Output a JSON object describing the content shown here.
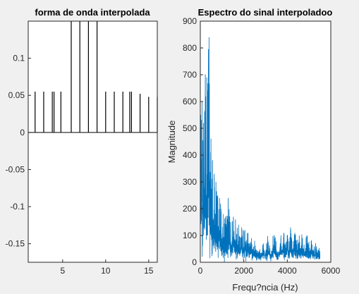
{
  "figure_background": "#f0f0f0",
  "chart_data": [
    {
      "type": "stem",
      "title": "forma de onda interpolada",
      "xlabel": "",
      "ylabel": "",
      "xlim": [
        1,
        16
      ],
      "ylim": [
        -0.175,
        0.15
      ],
      "xticks": [
        5,
        10,
        15
      ],
      "xtick_labels": [
        "5",
        "10",
        "15"
      ],
      "yticks": [
        0.1,
        0.05,
        0,
        -0.05,
        -0.1,
        -0.15
      ],
      "ytick_labels": [
        "0.1",
        "0.05",
        "0",
        "-0.05",
        "-0.1",
        "-0.15"
      ],
      "grid": false,
      "line_color": "#000000",
      "x": [
        1.8,
        2.8,
        3.8,
        4.0,
        4.8,
        6.0,
        7.0,
        8.0,
        9.0,
        10.0,
        11.0,
        12.0,
        12.8,
        13.0,
        14.0,
        15.0,
        16.0
      ],
      "values": [
        0.055,
        0.055,
        0.055,
        0.055,
        0.055,
        0.15,
        0.15,
        0.15,
        0.15,
        0.055,
        0.055,
        0.055,
        0.055,
        0.055,
        0.052,
        0.048,
        0.048
      ]
    },
    {
      "type": "line",
      "title": "Espectro do sinal interpoladoo",
      "xlabel": "Frequ?ncia (Hz)",
      "ylabel": "Magnitude",
      "xlim": [
        0,
        6000
      ],
      "ylim": [
        0,
        900
      ],
      "xticks": [
        0,
        2000,
        4000,
        6000
      ],
      "xtick_labels": [
        "0",
        "2000",
        "4000",
        "6000"
      ],
      "yticks": [
        0,
        100,
        200,
        300,
        400,
        500,
        600,
        700,
        800,
        900
      ],
      "ytick_labels": [
        "0",
        "100",
        "200",
        "300",
        "400",
        "500",
        "600",
        "700",
        "800",
        "900"
      ],
      "grid": false,
      "series_color": "#0072bd",
      "x_max": 5500,
      "peaks": [
        {
          "x": 20,
          "y": 550
        },
        {
          "x": 80,
          "y": 600
        },
        {
          "x": 150,
          "y": 520
        },
        {
          "x": 230,
          "y": 700
        },
        {
          "x": 300,
          "y": 690
        },
        {
          "x": 340,
          "y": 640
        },
        {
          "x": 400,
          "y": 840
        },
        {
          "x": 480,
          "y": 410
        },
        {
          "x": 560,
          "y": 380
        },
        {
          "x": 640,
          "y": 330
        },
        {
          "x": 720,
          "y": 300
        },
        {
          "x": 800,
          "y": 250
        },
        {
          "x": 880,
          "y": 240
        },
        {
          "x": 950,
          "y": 200
        },
        {
          "x": 1050,
          "y": 180
        },
        {
          "x": 1150,
          "y": 170
        },
        {
          "x": 1280,
          "y": 240
        },
        {
          "x": 1400,
          "y": 150
        },
        {
          "x": 1520,
          "y": 170
        },
        {
          "x": 1620,
          "y": 160
        },
        {
          "x": 1760,
          "y": 140
        },
        {
          "x": 1900,
          "y": 130
        },
        {
          "x": 2050,
          "y": 120
        },
        {
          "x": 2200,
          "y": 110
        },
        {
          "x": 2350,
          "y": 90
        },
        {
          "x": 2500,
          "y": 80
        },
        {
          "x": 2700,
          "y": 40
        },
        {
          "x": 2900,
          "y": 70
        },
        {
          "x": 3100,
          "y": 80
        },
        {
          "x": 3400,
          "y": 100
        },
        {
          "x": 3700,
          "y": 90
        },
        {
          "x": 3850,
          "y": 110
        },
        {
          "x": 4000,
          "y": 100
        },
        {
          "x": 4150,
          "y": 130
        },
        {
          "x": 4350,
          "y": 110
        },
        {
          "x": 4550,
          "y": 100
        },
        {
          "x": 4700,
          "y": 90
        },
        {
          "x": 4900,
          "y": 100
        },
        {
          "x": 5100,
          "y": 80
        },
        {
          "x": 5300,
          "y": 60
        },
        {
          "x": 5450,
          "y": 40
        }
      ]
    }
  ]
}
